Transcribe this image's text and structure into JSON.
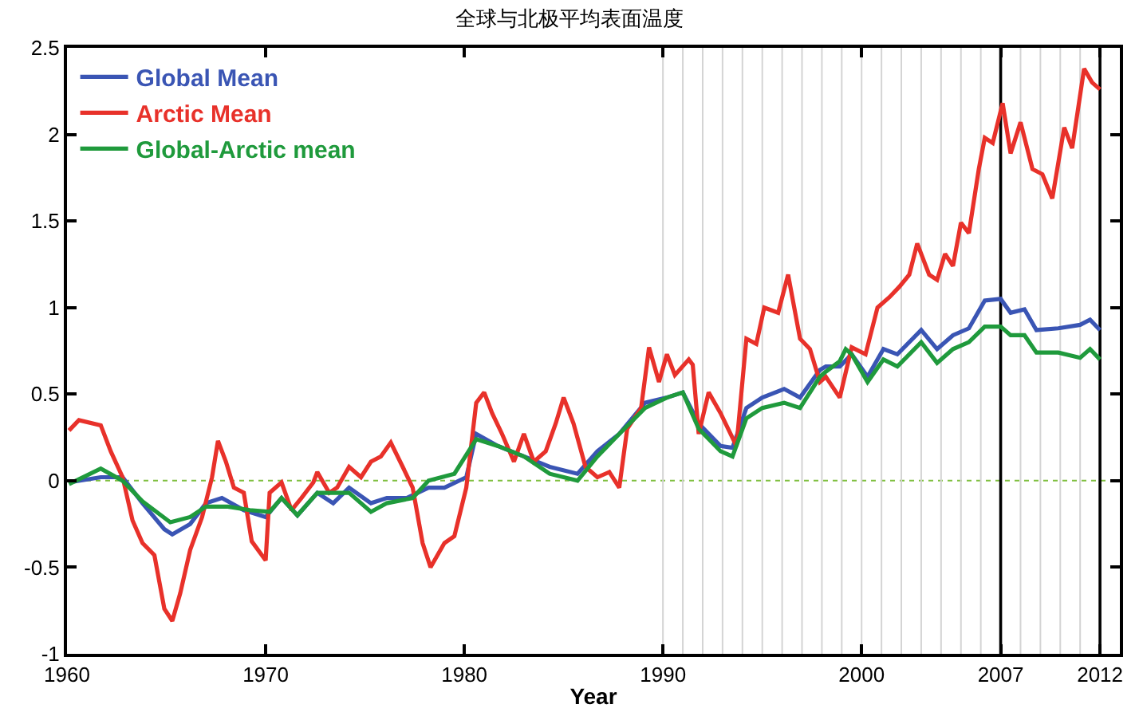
{
  "chart_data": {
    "type": "line",
    "title": "全球与北极平均表面温度",
    "xlabel": "Year",
    "xlim": [
      1960,
      2013
    ],
    "xticks": [
      1960,
      1970,
      1980,
      1990,
      2000,
      2007,
      2012
    ],
    "ylim": [
      -1,
      2.5
    ],
    "yticks": [
      -1,
      -0.5,
      0,
      0.5,
      1,
      1.5,
      2,
      2.5
    ],
    "grid": false,
    "legend": "top left",
    "marker": "none",
    "line_style": "solid",
    "series": [
      {
        "name": "Global Mean",
        "color": "#3a55b4",
        "x": [
          1960.1,
          1961.7,
          1962.8,
          1963.8,
          1964.9,
          1965.3,
          1966.2,
          1967.0,
          1967.8,
          1968.9,
          1970.0,
          1970.8,
          1971.6,
          1972.6,
          1973.4,
          1974.2,
          1975.3,
          1976.1,
          1977.1,
          1978.2,
          1979.0,
          1980.1,
          1980.6,
          1981.7,
          1983.0,
          1984.3,
          1985.7,
          1986.7,
          1987.8,
          1989.1,
          1990.2,
          1991.0,
          1991.8,
          1992.9,
          1993.5,
          1994.2,
          1995.0,
          1996.1,
          1996.9,
          1997.9,
          1998.2,
          1998.9,
          1999.5,
          2000.3,
          2001.1,
          2001.8,
          2003.0,
          2003.8,
          2004.6,
          2005.4,
          2006.2,
          2007.0,
          2007.5,
          2008.2,
          2008.8,
          2009.9,
          2011.0,
          2011.5,
          2012.0
        ],
        "values": [
          -0.01,
          0.02,
          0.02,
          -0.13,
          -0.28,
          -0.31,
          -0.25,
          -0.13,
          -0.1,
          -0.17,
          -0.21,
          -0.1,
          -0.2,
          -0.07,
          -0.13,
          -0.04,
          -0.13,
          -0.1,
          -0.1,
          -0.04,
          -0.04,
          0.02,
          0.27,
          0.2,
          0.14,
          0.08,
          0.04,
          0.17,
          0.27,
          0.45,
          0.48,
          0.51,
          0.33,
          0.2,
          0.19,
          0.42,
          0.48,
          0.53,
          0.48,
          0.64,
          0.66,
          0.66,
          0.73,
          0.6,
          0.76,
          0.73,
          0.87,
          0.76,
          0.84,
          0.88,
          1.04,
          1.05,
          0.97,
          0.99,
          0.87,
          0.88,
          0.9,
          0.93,
          0.87
        ]
      },
      {
        "name": "Arctic Mean",
        "color": "#e8312a",
        "x": [
          1960.1,
          1960.6,
          1961.7,
          1962.2,
          1962.8,
          1963.3,
          1963.8,
          1964.4,
          1964.9,
          1965.3,
          1965.7,
          1966.2,
          1966.8,
          1967.3,
          1967.6,
          1968.0,
          1968.4,
          1968.9,
          1969.3,
          1970.0,
          1970.2,
          1970.8,
          1971.3,
          1971.8,
          1972.4,
          1972.6,
          1973.2,
          1973.6,
          1974.2,
          1974.8,
          1975.3,
          1975.8,
          1976.3,
          1976.9,
          1977.4,
          1977.9,
          1978.3,
          1979.0,
          1979.5,
          1980.1,
          1980.6,
          1981.0,
          1981.4,
          1981.9,
          1982.5,
          1983.0,
          1983.5,
          1984.1,
          1984.6,
          1985.0,
          1985.5,
          1986.1,
          1986.7,
          1987.3,
          1987.8,
          1988.2,
          1988.9,
          1989.3,
          1989.8,
          1990.2,
          1990.6,
          1991.3,
          1991.5,
          1991.8,
          1992.3,
          1992.9,
          1993.7,
          1994.2,
          1994.7,
          1995.1,
          1995.8,
          1996.3,
          1996.9,
          1997.4,
          1997.9,
          1998.2,
          1998.9,
          1999.5,
          2000.2,
          2000.8,
          2001.4,
          2001.9,
          2002.4,
          2002.8,
          2003.4,
          2003.8,
          2004.2,
          2004.6,
          2005.0,
          2005.4,
          2005.9,
          2006.2,
          2006.6,
          2007.1,
          2007.5,
          2008.0,
          2008.6,
          2009.1,
          2009.6,
          2010.2,
          2010.6,
          2011.2,
          2011.6,
          2012.0
        ],
        "values": [
          0.29,
          0.35,
          0.32,
          0.17,
          0.02,
          -0.23,
          -0.36,
          -0.43,
          -0.74,
          -0.81,
          -0.65,
          -0.4,
          -0.21,
          0.02,
          0.23,
          0.11,
          -0.04,
          -0.07,
          -0.35,
          -0.46,
          -0.07,
          -0.01,
          -0.17,
          -0.1,
          -0.01,
          0.05,
          -0.07,
          -0.04,
          0.08,
          0.02,
          0.11,
          0.14,
          0.22,
          0.08,
          -0.04,
          -0.36,
          -0.5,
          -0.36,
          -0.32,
          -0.04,
          0.45,
          0.51,
          0.39,
          0.27,
          0.11,
          0.27,
          0.11,
          0.17,
          0.33,
          0.48,
          0.33,
          0.08,
          0.02,
          0.05,
          -0.04,
          0.3,
          0.42,
          0.77,
          0.57,
          0.73,
          0.61,
          0.7,
          0.67,
          0.27,
          0.51,
          0.39,
          0.2,
          0.82,
          0.79,
          1.0,
          0.97,
          1.19,
          0.82,
          0.76,
          0.57,
          0.6,
          0.48,
          0.77,
          0.73,
          1.0,
          1.06,
          1.12,
          1.19,
          1.37,
          1.19,
          1.16,
          1.31,
          1.24,
          1.49,
          1.43,
          1.8,
          1.98,
          1.95,
          2.18,
          1.89,
          2.07,
          1.8,
          1.77,
          1.63,
          2.04,
          1.92,
          2.38,
          2.3,
          2.26
        ]
      },
      {
        "name": "Global-Arctic mean",
        "color": "#1f9a3c",
        "x": [
          1960.1,
          1961.7,
          1962.8,
          1963.8,
          1965.2,
          1966.2,
          1967.0,
          1968.1,
          1969.2,
          1970.2,
          1970.8,
          1971.6,
          1972.6,
          1974.2,
          1975.3,
          1976.1,
          1977.4,
          1978.2,
          1979.5,
          1980.6,
          1981.7,
          1983.0,
          1984.3,
          1985.7,
          1986.7,
          1987.8,
          1989.1,
          1990.2,
          1991.0,
          1991.8,
          1992.9,
          1993.5,
          1994.2,
          1995.0,
          1996.1,
          1996.9,
          1997.9,
          1998.2,
          1998.9,
          1999.2,
          1999.5,
          2000.3,
          2001.1,
          2001.8,
          2003.0,
          2003.8,
          2004.6,
          2005.4,
          2006.2,
          2007.0,
          2007.5,
          2008.2,
          2008.8,
          2009.9,
          2011.0,
          2011.5,
          2012.0
        ],
        "values": [
          -0.02,
          0.07,
          0.0,
          -0.12,
          -0.24,
          -0.21,
          -0.15,
          -0.15,
          -0.17,
          -0.18,
          -0.1,
          -0.2,
          -0.07,
          -0.07,
          -0.18,
          -0.13,
          -0.1,
          0.0,
          0.04,
          0.24,
          0.2,
          0.14,
          0.04,
          0.0,
          0.14,
          0.27,
          0.42,
          0.48,
          0.51,
          0.3,
          0.17,
          0.14,
          0.36,
          0.42,
          0.45,
          0.42,
          0.6,
          0.63,
          0.69,
          0.76,
          0.73,
          0.57,
          0.7,
          0.66,
          0.8,
          0.68,
          0.76,
          0.8,
          0.89,
          0.89,
          0.84,
          0.84,
          0.74,
          0.74,
          0.71,
          0.76,
          0.7
        ]
      }
    ],
    "ref_lines": [
      {
        "axis": "y",
        "value": 0,
        "color": "#7fbf3f",
        "line_style": "dotted"
      },
      {
        "axis": "x",
        "value": 1990,
        "color": "#d4d4d4"
      },
      {
        "axis": "x",
        "value": 1991,
        "color": "#d4d4d4"
      },
      {
        "axis": "x",
        "value": 1992,
        "color": "#d4d4d4"
      },
      {
        "axis": "x",
        "value": 1993,
        "color": "#d4d4d4"
      },
      {
        "axis": "x",
        "value": 1994,
        "color": "#d4d4d4"
      },
      {
        "axis": "x",
        "value": 1995,
        "color": "#d4d4d4"
      },
      {
        "axis": "x",
        "value": 1996,
        "color": "#d4d4d4"
      },
      {
        "axis": "x",
        "value": 1997,
        "color": "#d4d4d4"
      },
      {
        "axis": "x",
        "value": 1998,
        "color": "#d4d4d4"
      },
      {
        "axis": "x",
        "value": 1999,
        "color": "#d4d4d4"
      },
      {
        "axis": "x",
        "value": 2000,
        "color": "#d4d4d4"
      },
      {
        "axis": "x",
        "value": 2001,
        "color": "#d4d4d4"
      },
      {
        "axis": "x",
        "value": 2002,
        "color": "#d4d4d4"
      },
      {
        "axis": "x",
        "value": 2003,
        "color": "#d4d4d4"
      },
      {
        "axis": "x",
        "value": 2004,
        "color": "#d4d4d4"
      },
      {
        "axis": "x",
        "value": 2005,
        "color": "#d4d4d4"
      },
      {
        "axis": "x",
        "value": 2006,
        "color": "#d4d4d4"
      },
      {
        "axis": "x",
        "value": 2007,
        "color": "#000000"
      },
      {
        "axis": "x",
        "value": 2008,
        "color": "#d4d4d4"
      },
      {
        "axis": "x",
        "value": 2009,
        "color": "#d4d4d4"
      },
      {
        "axis": "x",
        "value": 2010,
        "color": "#d4d4d4"
      },
      {
        "axis": "x",
        "value": 2011,
        "color": "#d4d4d4"
      },
      {
        "axis": "x",
        "value": 2012,
        "color": "#000000"
      }
    ]
  }
}
